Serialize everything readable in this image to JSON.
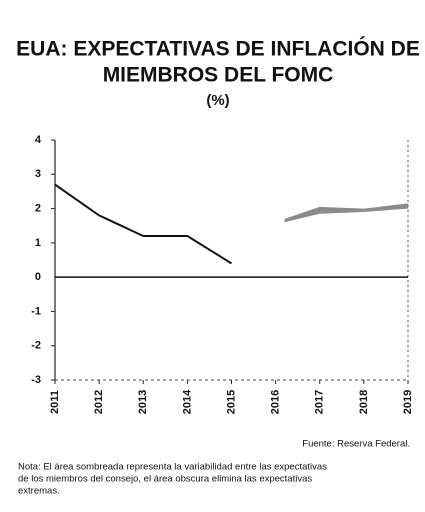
{
  "chart_data": {
    "type": "line",
    "title": [
      "EUA: EXPECTATIVAS DE INFLACIÓN DE",
      "MIEMBROS DEL FOMC"
    ],
    "subtitle": "(%)",
    "x": [
      2011,
      2012,
      2013,
      2014,
      2015
    ],
    "series": [
      {
        "color": "#111111",
        "values": [
          2.7,
          1.8,
          1.2,
          1.2,
          0.4
        ]
      }
    ],
    "band": {
      "color": "#777777",
      "x": [
        2016.2,
        2017,
        2018,
        2019
      ],
      "low": [
        1.6,
        1.85,
        1.9,
        2.0
      ],
      "high": [
        1.7,
        2.05,
        2.0,
        2.15
      ]
    },
    "xlim": [
      2011,
      2019
    ],
    "xticks": [
      2011,
      2012,
      2013,
      2014,
      2015,
      2016,
      2017,
      2018,
      2019
    ],
    "ylim": [
      -3,
      4
    ],
    "yticks": [
      -3,
      -2,
      -1,
      0,
      1,
      2,
      3,
      4
    ],
    "source": "Fuente: Reserva Federal.",
    "note": [
      "Nota: El área sombreada representa la variabilidad entre las expectativas",
      "de los miembros del consejo, el área obscura elimina las expectativas",
      "extremas."
    ]
  }
}
